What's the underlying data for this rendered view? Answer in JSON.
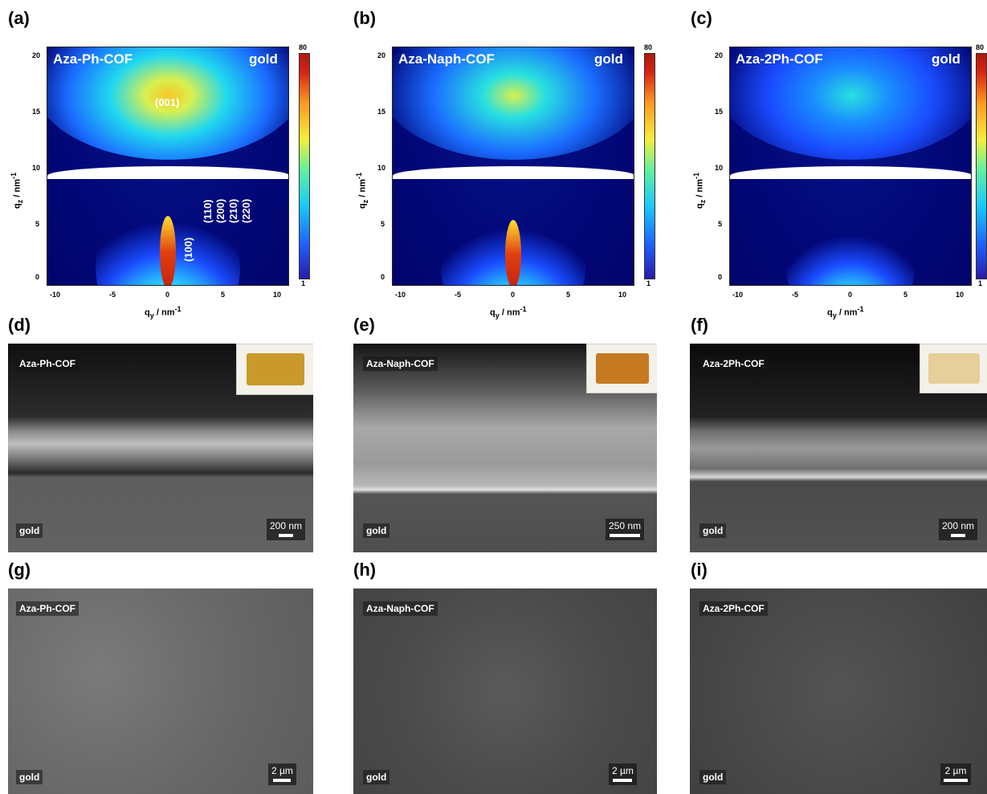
{
  "panels": {
    "a": {
      "letter": "(a)",
      "sample": "Aza-Ph-COF",
      "substrate": "gold"
    },
    "b": {
      "letter": "(b)",
      "sample": "Aza-Naph-COF",
      "substrate": "gold"
    },
    "c": {
      "letter": "(c)",
      "sample": "Aza-2Ph-COF",
      "substrate": "gold"
    },
    "d": {
      "letter": "(d)",
      "sample": "Aza-Ph-COF",
      "substrate": "gold",
      "scale": "200 nm"
    },
    "e": {
      "letter": "(e)",
      "sample": "Aza-Naph-COF",
      "substrate": "gold",
      "scale": "250 nm"
    },
    "f": {
      "letter": "(f)",
      "sample": "Aza-2Ph-COF",
      "substrate": "gold",
      "scale": "200 nm"
    },
    "g": {
      "letter": "(g)",
      "sample": "Aza-Ph-COF",
      "substrate": "gold",
      "scale": "2 µm"
    },
    "h": {
      "letter": "(h)",
      "sample": "Aza-Naph-COF",
      "substrate": "gold",
      "scale": "2 µm"
    },
    "i": {
      "letter": "(i)",
      "sample": "Aza-2Ph-COF",
      "substrate": "gold",
      "scale": "2 µm"
    }
  },
  "giwaxs": {
    "xlabel": "q",
    "xlabel_sub": "y",
    "ylabel": "q",
    "ylabel_sub": "z",
    "unit": " / nm",
    "unit_sup": "-1",
    "xticks": [
      "-10",
      "-5",
      "0",
      "5",
      "10"
    ],
    "yticks": [
      "20",
      "15",
      "10",
      "5",
      "0"
    ],
    "colorbar_max": "80",
    "colorbar_min": "1",
    "miller_001": "(001)",
    "miller_100": "(100)",
    "miller_others": [
      "(110)",
      "(200)",
      "(210)",
      "(220)"
    ]
  }
}
